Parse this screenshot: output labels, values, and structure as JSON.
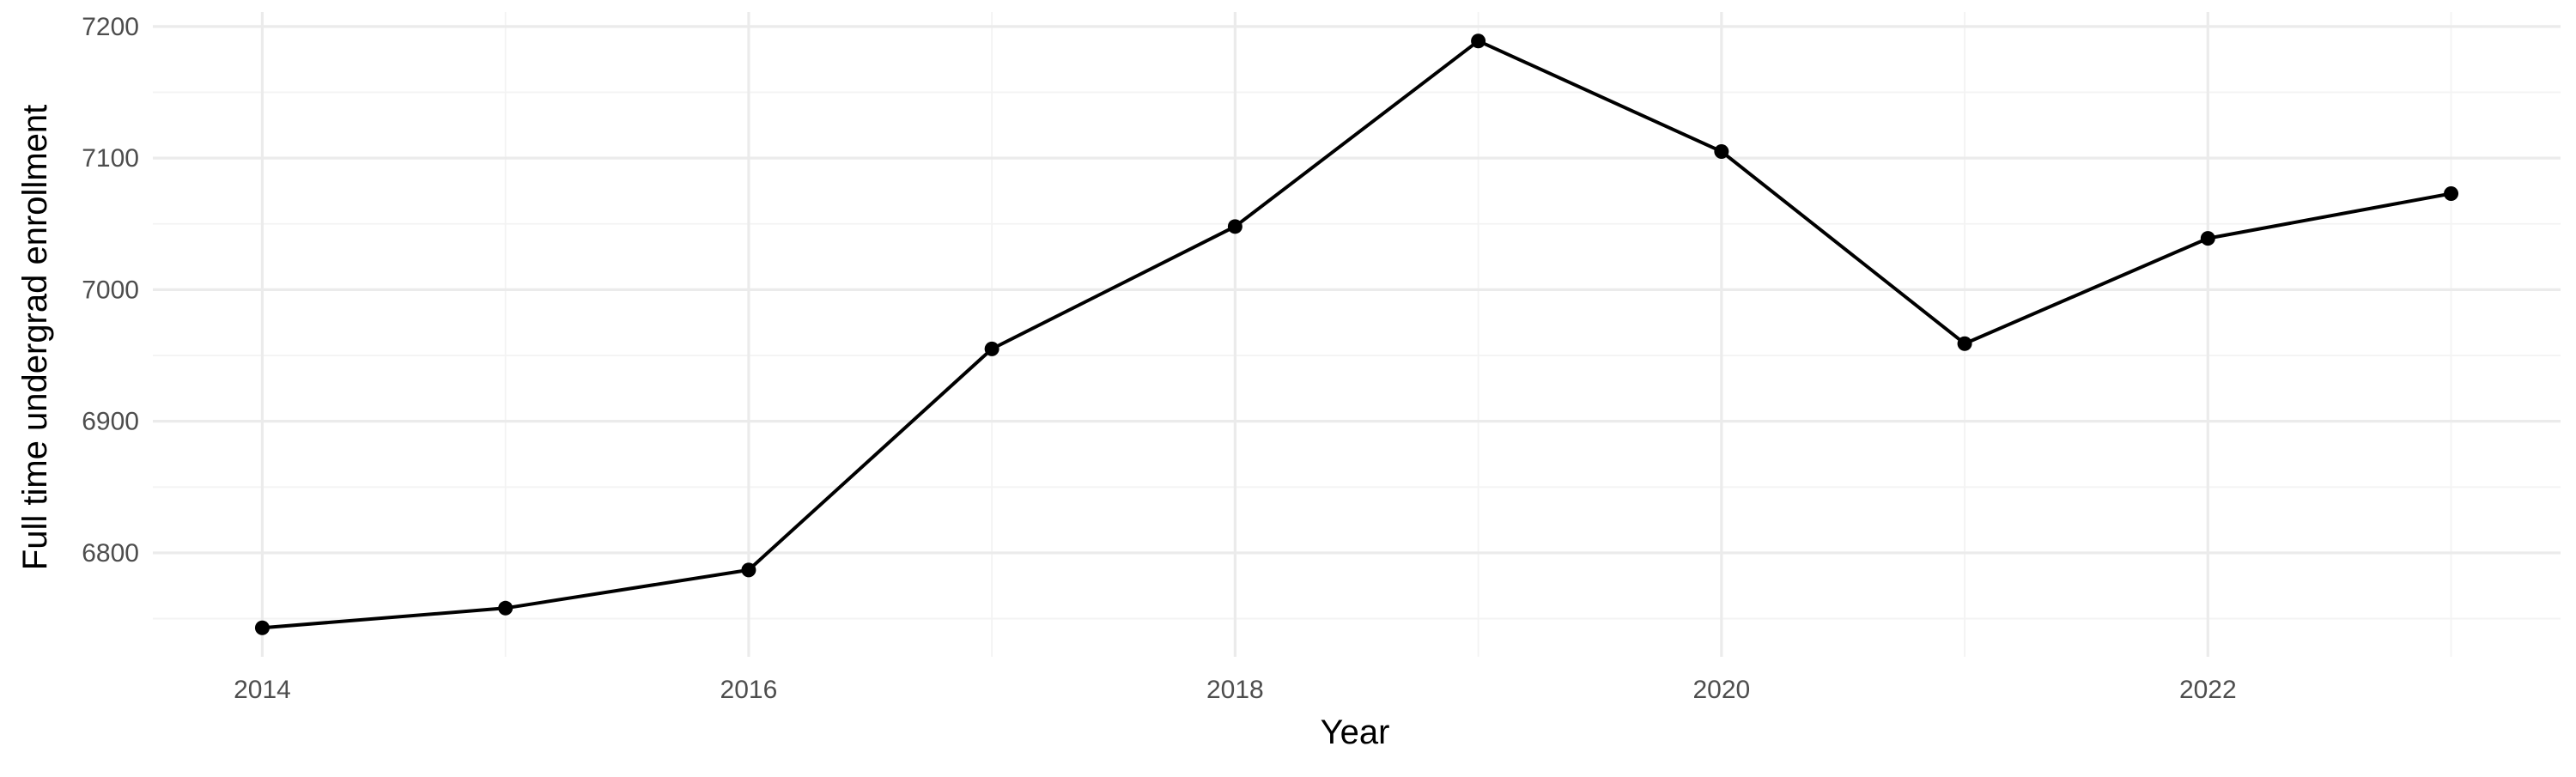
{
  "chart_data": {
    "type": "line",
    "title": "",
    "xlabel": "Year",
    "ylabel": "Full time undergrad enrollment",
    "x": [
      2014,
      2015,
      2016,
      2017,
      2018,
      2019,
      2020,
      2021,
      2022,
      2023
    ],
    "series": [
      {
        "values": [
          6743,
          6758,
          6787,
          6955,
          7048,
          7189,
          7105,
          6959,
          7039,
          7073
        ]
      }
    ],
    "xlim": [
      2013.55,
      2023.45
    ],
    "ylim": [
      6721,
      7211
    ],
    "x_ticks": [
      2014,
      2016,
      2018,
      2020,
      2022
    ],
    "x_tick_labels": [
      "2014",
      "2016",
      "2018",
      "2020",
      "2022"
    ],
    "x_minor_ticks": [
      2015,
      2017,
      2019,
      2021,
      2023
    ],
    "y_ticks": [
      6800,
      6900,
      7000,
      7100,
      7200
    ],
    "y_tick_labels": [
      "6800",
      "6900",
      "7000",
      "7100",
      "7200"
    ],
    "y_minor_ticks": [
      6750,
      6850,
      6950,
      7050,
      7150
    ],
    "grid": true,
    "legend": "none",
    "colors": {
      "line": "#000000",
      "points": "#000000",
      "grid_major": "#ebebeb",
      "grid_minor": "#f3f3f3",
      "tick_text": "#4d4d4d",
      "background": "#ffffff"
    }
  }
}
